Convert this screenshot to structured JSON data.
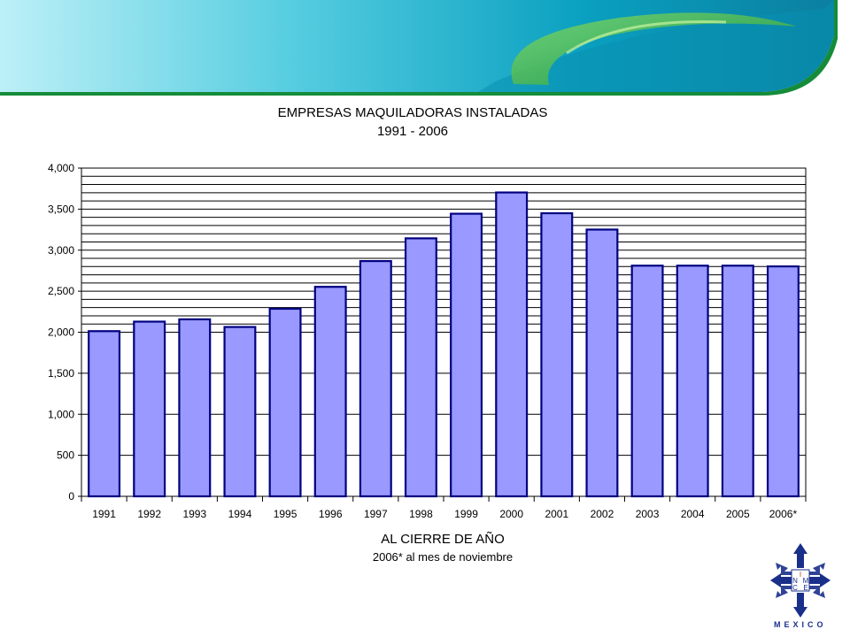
{
  "colors": {
    "banner_light": "#9ee6f2",
    "banner_dark": "#0c9ab8",
    "banner_green": "#3fb44a",
    "bar_fill": "#9999ff",
    "bar_stroke": "#000080",
    "logo_blue": "#1a2f8a"
  },
  "logo": {
    "icon": "index-cross-arrows-logo",
    "letters": [
      "I",
      "N",
      "M",
      "C",
      "E"
    ],
    "wordmark": "MEXICO"
  },
  "chart_data": {
    "type": "bar",
    "title": "EMPRESAS MAQUILADORAS INSTALADAS",
    "subtitle": "1991 - 2006",
    "xlabel": "AL CIERRE DE AÑO",
    "xlabel_note": "2006* al mes de noviembre",
    "ylabel": "",
    "categories": [
      "1991",
      "1992",
      "1993",
      "1994",
      "1995",
      "1996",
      "1997",
      "1998",
      "1999",
      "2000",
      "2001",
      "2002",
      "2003",
      "2004",
      "2005",
      "2006*"
    ],
    "values": [
      2013,
      2129,
      2157,
      2064,
      2286,
      2553,
      2867,
      3144,
      3444,
      3703,
      3450,
      3251,
      2811,
      2811,
      2811,
      2802
    ],
    "ylim": [
      0,
      4000
    ],
    "yticks": [
      0,
      500,
      1000,
      1500,
      2000,
      2500,
      3000,
      3500,
      4000
    ],
    "ytick_labels": [
      "0",
      "500",
      "1,000",
      "1,500",
      "2,000",
      "2,500",
      "3,000",
      "3,500",
      "4,000"
    ],
    "minor_gridline_step": 100,
    "gridlines_from": 2000,
    "grid": true,
    "legend": "none"
  }
}
